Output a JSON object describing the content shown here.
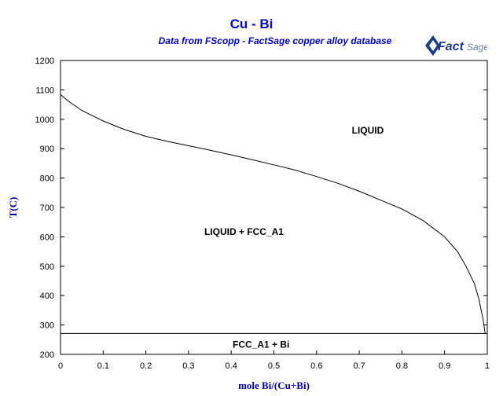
{
  "chart_data": {
    "type": "line",
    "title": "Cu - Bi",
    "subtitle": "Data from FScopp - FactSage copper alloy database",
    "xlabel": "mole Bi/(Cu+Bi)",
    "ylabel": "T(C)",
    "xlim": [
      0,
      1
    ],
    "ylim": [
      200,
      1200
    ],
    "x_ticks": [
      "0",
      "0.1",
      "0.2",
      "0.3",
      "0.4",
      "0.5",
      "0.6",
      "0.7",
      "0.8",
      "0.9",
      "1"
    ],
    "y_ticks": [
      "200",
      "300",
      "400",
      "500",
      "600",
      "700",
      "800",
      "900",
      "1000",
      "1100",
      "1200"
    ],
    "grid": false,
    "series": [
      {
        "values": [
          [
            0.0,
            1084
          ],
          [
            0.02,
            1060
          ],
          [
            0.05,
            1030
          ],
          [
            0.1,
            994
          ],
          [
            0.15,
            965
          ],
          [
            0.2,
            942
          ],
          [
            0.25,
            925
          ],
          [
            0.3,
            910
          ],
          [
            0.35,
            895
          ],
          [
            0.4,
            879
          ],
          [
            0.45,
            862
          ],
          [
            0.5,
            845
          ],
          [
            0.55,
            827
          ],
          [
            0.6,
            805
          ],
          [
            0.65,
            782
          ],
          [
            0.7,
            755
          ],
          [
            0.75,
            725
          ],
          [
            0.8,
            695
          ],
          [
            0.85,
            655
          ],
          [
            0.9,
            600
          ],
          [
            0.93,
            550
          ],
          [
            0.95,
            500
          ],
          [
            0.97,
            440
          ],
          [
            0.98,
            390
          ],
          [
            0.99,
            320
          ],
          [
            0.995,
            271
          ]
        ]
      },
      {
        "values": [
          [
            0.0,
            271
          ],
          [
            1.0,
            271
          ]
        ]
      }
    ],
    "annotations": [
      {
        "text": "LIQUID",
        "x": 0.72,
        "y": 962
      },
      {
        "text": "LIQUID + FCC_A1",
        "x": 0.43,
        "y": 617
      },
      {
        "text": "FCC_A1 + Bi",
        "x": 0.47,
        "y": 233
      }
    ]
  },
  "logo": {
    "text_fact": "Fact",
    "text_sage": "Sage",
    "colors": {
      "blue": "#1b3a8a",
      "gray": "#6a7ba0"
    }
  }
}
